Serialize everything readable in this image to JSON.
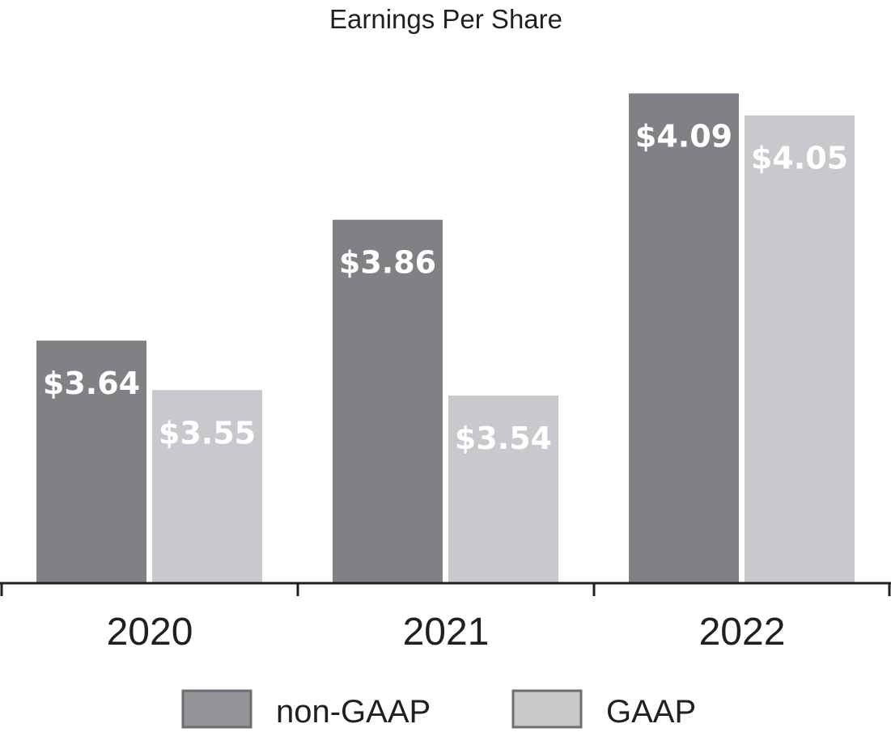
{
  "chart_data": {
    "type": "bar",
    "title": "Earnings Per Share",
    "xlabel": "",
    "ylabel": "",
    "categories": [
      "2020",
      "2021",
      "2022"
    ],
    "series": [
      {
        "name": "non-GAAP",
        "values": [
          3.64,
          3.86,
          4.09
        ],
        "labels": [
          "$3.64",
          "$3.86",
          "$4.09"
        ],
        "color": "#808184"
      },
      {
        "name": "GAAP",
        "values": [
          3.55,
          3.54,
          4.05
        ],
        "labels": [
          "$3.55",
          "$3.54",
          "$4.05"
        ],
        "color": "#c8c9cc"
      }
    ],
    "ylim": [
      3.2,
      4.26
    ],
    "grid": false,
    "legend_position": "bottom",
    "legend_colors": {
      "non-GAAP": "#939598",
      "GAAP": "#c7c8ca",
      "border": "#6d6e71"
    },
    "axis_color": "#231f20"
  }
}
